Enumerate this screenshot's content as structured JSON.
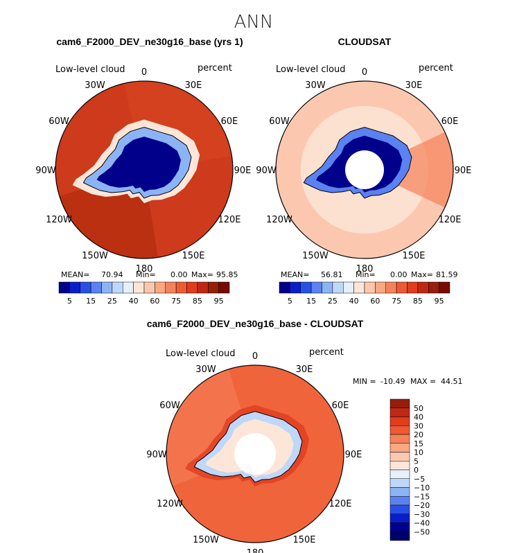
{
  "figure": {
    "title": "ANN"
  },
  "panels": [
    {
      "title": "cam6_F2000_DEV_ne30g16_base (yrs 1)",
      "variable": "Low-level cloud",
      "units": "percent",
      "lon_labels": [
        "0",
        "30E",
        "60E",
        "90E",
        "120E",
        "150E",
        "180",
        "150W",
        "120W",
        "90W",
        "60W",
        "30W"
      ],
      "stats": {
        "mean_label": "MEAN=",
        "mean": "70.94",
        "min_label": "Min=",
        "min": "0.00",
        "max_label": "Max=",
        "max": "95.85"
      },
      "colorbar": {
        "ticks": [
          "5",
          "15",
          "25",
          "40",
          "60",
          "75",
          "85",
          "95"
        ],
        "colors": [
          "#00008b",
          "#0a1ec8",
          "#2850e6",
          "#5a82f0",
          "#8cb4f5",
          "#bed7fa",
          "#e6f0fa",
          "#fde6d8",
          "#fbc8af",
          "#f9a882",
          "#f5825a",
          "#ef5a32",
          "#e03c1e",
          "#c02814",
          "#961e0a",
          "#780a00"
        ]
      },
      "field": {
        "ocean_color": "#cd3a1c",
        "bands": [
          {
            "sector": "pacific",
            "color": "#b8300f"
          },
          {
            "sector": "atlantic",
            "color": "#d7461f"
          }
        ],
        "continent_interior_color": "#00008b",
        "continent_edge_color": "#8cb4f5",
        "coastal_color": "#fde6d8"
      }
    },
    {
      "title": "CLOUDSAT",
      "variable": "Low-level cloud",
      "units": "percent",
      "lon_labels": [
        "0",
        "30E",
        "60E",
        "90E",
        "120E",
        "150E",
        "180",
        "150W",
        "120W",
        "90W",
        "60W",
        "30W"
      ],
      "stats": {
        "mean_label": "MEAN=",
        "mean": "56.81",
        "min_label": "Min=",
        "min": "0.00",
        "max_label": "Max=",
        "max": "81.59"
      },
      "colorbar": {
        "ticks": [
          "5",
          "15",
          "25",
          "40",
          "60",
          "75",
          "85",
          "95"
        ],
        "colors": [
          "#00008b",
          "#0a1ec8",
          "#2850e6",
          "#5a82f0",
          "#8cb4f5",
          "#bed7fa",
          "#e6f0fa",
          "#fde6d8",
          "#fbc8af",
          "#f9a882",
          "#f5825a",
          "#ef5a32",
          "#e03c1e",
          "#c02814",
          "#961e0a",
          "#780a00"
        ]
      },
      "field": {
        "ocean_color": "#fbc8af",
        "continent_interior_color": "#00008b",
        "continent_edge_color": "#5a82f0",
        "coastal_color": "#fde6d8",
        "has_polar_hole": true
      }
    },
    {
      "title": "cam6_F2000_DEV_ne30g16_base - CLOUDSAT",
      "variable": "Low-level cloud",
      "units": "percent",
      "lon_labels": [
        "0",
        "30E",
        "60E",
        "90E",
        "120E",
        "150E",
        "180",
        "150W",
        "120W",
        "90W",
        "60W",
        "30W"
      ],
      "stats": {
        "min_label": "MIN =",
        "min": "-10.49",
        "max_label": "MAX =",
        "max": "44.51"
      },
      "colorbar": {
        "ticks": [
          "50",
          "40",
          "30",
          "20",
          "15",
          "10",
          "5",
          "0",
          "−5",
          "−10",
          "−15",
          "−20",
          "−30",
          "−40",
          "−50"
        ],
        "colors": [
          "#961e0a",
          "#c02814",
          "#e03c1e",
          "#ef5a32",
          "#f5825a",
          "#f9a882",
          "#fbc8af",
          "#fde6d8",
          "#e6f0fa",
          "#bed7fa",
          "#8cb4f5",
          "#5a82f0",
          "#2850e6",
          "#0a1ec8",
          "#00008b",
          "#00006a"
        ]
      },
      "field": {
        "ocean_color": "#f0643c",
        "continent_interior_color": "#fde6d8",
        "continent_edge_color": "#bed7fa",
        "coastal_color": "#e03c1e",
        "has_polar_hole": true
      }
    }
  ]
}
